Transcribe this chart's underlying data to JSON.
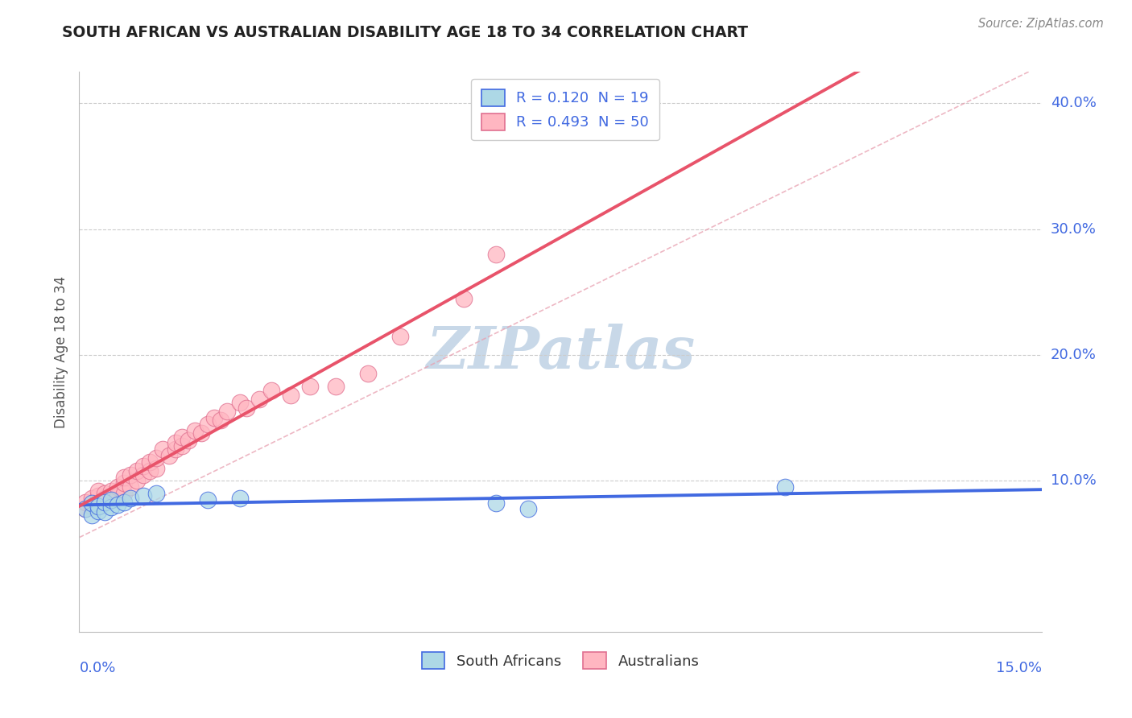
{
  "title": "SOUTH AFRICAN VS AUSTRALIAN DISABILITY AGE 18 TO 34 CORRELATION CHART",
  "source": "Source: ZipAtlas.com",
  "ylabel": "Disability Age 18 to 34",
  "ytick_vals": [
    0.1,
    0.2,
    0.3,
    0.4
  ],
  "ytick_labels": [
    "10.0%",
    "20.0%",
    "30.0%",
    "40.0%"
  ],
  "xlim": [
    0.0,
    0.15
  ],
  "ylim": [
    -0.02,
    0.425
  ],
  "legend1_label": "R = 0.120  N = 19",
  "legend2_label": "R = 0.493  N = 50",
  "legend_sa": "South Africans",
  "legend_au": "Australians",
  "sa_face_color": "#ADD8E6",
  "sa_edge_color": "#4169E1",
  "au_face_color": "#FFB6C1",
  "au_edge_color": "#E07090",
  "sa_line_color": "#4169E1",
  "au_line_color": "#E8536A",
  "diag_color": "#E8A0B0",
  "grid_color": "#CCCCCC",
  "bg_color": "#FFFFFF",
  "title_color": "#222222",
  "tick_label_color": "#4169E1",
  "watermark": "ZIPatlas",
  "watermark_color": "#C8D8E8",
  "sa_x": [
    0.001,
    0.002,
    0.002,
    0.003,
    0.003,
    0.004,
    0.004,
    0.005,
    0.005,
    0.006,
    0.007,
    0.008,
    0.01,
    0.012,
    0.02,
    0.025,
    0.065,
    0.07,
    0.11
  ],
  "sa_y": [
    0.078,
    0.073,
    0.082,
    0.076,
    0.08,
    0.075,
    0.083,
    0.079,
    0.085,
    0.081,
    0.083,
    0.086,
    0.088,
    0.09,
    0.085,
    0.086,
    0.082,
    0.078,
    0.095
  ],
  "au_x": [
    0.001,
    0.001,
    0.002,
    0.002,
    0.003,
    0.003,
    0.003,
    0.004,
    0.004,
    0.005,
    0.005,
    0.006,
    0.006,
    0.007,
    0.007,
    0.007,
    0.008,
    0.008,
    0.009,
    0.009,
    0.01,
    0.01,
    0.011,
    0.011,
    0.012,
    0.012,
    0.013,
    0.014,
    0.015,
    0.015,
    0.016,
    0.016,
    0.017,
    0.018,
    0.019,
    0.02,
    0.021,
    0.022,
    0.023,
    0.025,
    0.026,
    0.028,
    0.03,
    0.033,
    0.036,
    0.04,
    0.045,
    0.05,
    0.06,
    0.065
  ],
  "au_y": [
    0.078,
    0.083,
    0.08,
    0.086,
    0.082,
    0.088,
    0.092,
    0.086,
    0.09,
    0.085,
    0.092,
    0.088,
    0.095,
    0.09,
    0.098,
    0.103,
    0.095,
    0.105,
    0.1,
    0.108,
    0.105,
    0.112,
    0.108,
    0.115,
    0.11,
    0.118,
    0.125,
    0.12,
    0.125,
    0.13,
    0.128,
    0.135,
    0.132,
    0.14,
    0.138,
    0.145,
    0.15,
    0.148,
    0.155,
    0.162,
    0.158,
    0.165,
    0.172,
    0.168,
    0.175,
    0.175,
    0.185,
    0.215,
    0.245,
    0.28
  ]
}
